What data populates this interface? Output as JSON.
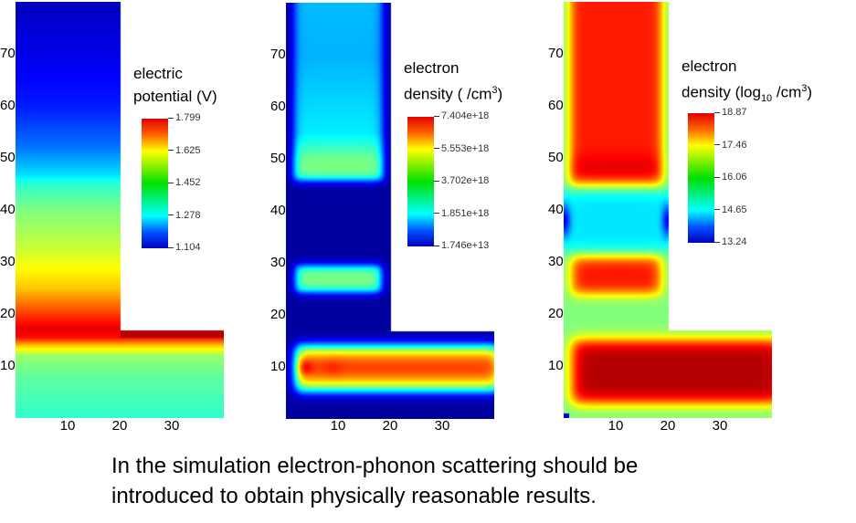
{
  "chart_data": [
    {
      "type": "heatmap",
      "colorbar_title_line1": "electric",
      "colorbar_title_line2": "potential (V)",
      "colorbar_range": [
        1.104,
        1.799
      ],
      "colorbar_ticks": [
        "1.799",
        "1.625",
        "1.452",
        "1.278",
        "1.104"
      ],
      "colormap": "jet",
      "x_ticks": [
        "10",
        "20",
        "30"
      ],
      "y_ticks": [
        "70",
        "60",
        "50",
        "40",
        "30",
        "20",
        "10"
      ],
      "xlim": [
        0,
        40
      ],
      "ylim": [
        0,
        80
      ]
    },
    {
      "type": "heatmap",
      "colorbar_title_line1": "electron",
      "colorbar_title_line2": "density ( /cm",
      "colorbar_title_sup": "3",
      "colorbar_title_end": ")",
      "colorbar_range": [
        17460000000000.0,
        7.404e+18
      ],
      "colorbar_ticks": [
        "7.404e+18",
        "5.553e+18",
        "3.702e+18",
        "1.851e+18",
        "1.746e+13"
      ],
      "colormap": "jet",
      "x_ticks": [
        "10",
        "20",
        "30"
      ],
      "y_ticks": [
        "70",
        "60",
        "50",
        "40",
        "30",
        "20",
        "10"
      ],
      "xlim": [
        0,
        40
      ],
      "ylim": [
        0,
        80
      ]
    },
    {
      "type": "heatmap",
      "colorbar_title_line1": "electron",
      "colorbar_title_line2": "density (log",
      "colorbar_title_sub": "10",
      "colorbar_title_mid": " /cm",
      "colorbar_title_sup": "3",
      "colorbar_title_end": ")",
      "colorbar_range": [
        13.24,
        18.87
      ],
      "colorbar_ticks": [
        "18.87",
        "17.46",
        "16.06",
        "14.65",
        "13.24"
      ],
      "colormap": "jet",
      "x_ticks": [
        "10",
        "20",
        "30"
      ],
      "y_ticks": [
        "70",
        "60",
        "50",
        "40",
        "30",
        "20",
        "10"
      ],
      "xlim": [
        0,
        40
      ],
      "ylim": [
        0,
        80
      ]
    }
  ],
  "caption": {
    "line1": "In the simulation electron-phonon scattering should be",
    "line2": "introduced to obtain physically reasonable results."
  }
}
